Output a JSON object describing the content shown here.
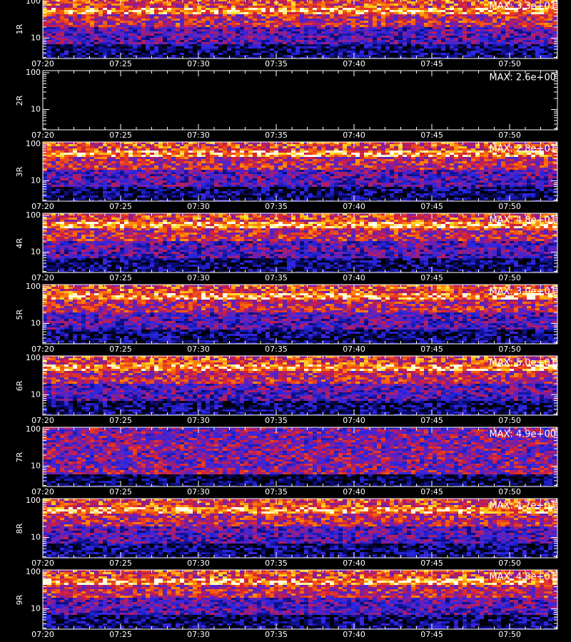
{
  "chart_data": [
    {
      "type": "spectrogram",
      "ylabel": "1R",
      "annotation": "MAX: 3.3e+01",
      "max": 33,
      "log_y": true,
      "ylim": [
        2.8,
        115
      ],
      "yticks": [
        10,
        100
      ],
      "xlim": [
        440,
        473.07
      ],
      "xticks": [
        {
          "value": 440,
          "label": "07:20"
        },
        {
          "value": 445,
          "label": "07:25"
        },
        {
          "value": 450,
          "label": "07:30"
        },
        {
          "value": 455,
          "label": "07:35"
        },
        {
          "value": 460,
          "label": "07:40"
        },
        {
          "value": 465,
          "label": "07:45"
        },
        {
          "value": 470,
          "label": "07:50"
        }
      ]
    },
    {
      "type": "spectrogram",
      "ylabel": "2R",
      "annotation": "MAX: 2.6e+00",
      "max": 2.6,
      "log_y": true,
      "ylim": [
        2.8,
        115
      ],
      "yticks": [
        10,
        100
      ],
      "xlim": [
        440,
        473.07
      ],
      "xticks": [
        {
          "value": 440,
          "label": "07:20"
        },
        {
          "value": 445,
          "label": "07:25"
        },
        {
          "value": 450,
          "label": "07:30"
        },
        {
          "value": 455,
          "label": "07:35"
        },
        {
          "value": 460,
          "label": "07:40"
        },
        {
          "value": 465,
          "label": "07:45"
        },
        {
          "value": 470,
          "label": "07:50"
        }
      ]
    },
    {
      "type": "spectrogram",
      "ylabel": "3R",
      "annotation": "MAX: 2.8e+01",
      "max": 28,
      "log_y": true,
      "ylim": [
        2.8,
        115
      ],
      "yticks": [
        10,
        100
      ],
      "xlim": [
        440,
        473.07
      ],
      "xticks": [
        {
          "value": 440,
          "label": "07:20"
        },
        {
          "value": 445,
          "label": "07:25"
        },
        {
          "value": 450,
          "label": "07:30"
        },
        {
          "value": 455,
          "label": "07:35"
        },
        {
          "value": 460,
          "label": "07:40"
        },
        {
          "value": 465,
          "label": "07:45"
        },
        {
          "value": 470,
          "label": "07:50"
        }
      ]
    },
    {
      "type": "spectrogram",
      "ylabel": "4R",
      "annotation": "MAX: 4.8e+01",
      "max": 48,
      "log_y": true,
      "ylim": [
        2.8,
        115
      ],
      "yticks": [
        10,
        100
      ],
      "xlim": [
        440,
        473.07
      ],
      "xticks": [
        {
          "value": 440,
          "label": "07:20"
        },
        {
          "value": 445,
          "label": "07:25"
        },
        {
          "value": 450,
          "label": "07:30"
        },
        {
          "value": 455,
          "label": "07:35"
        },
        {
          "value": 460,
          "label": "07:40"
        },
        {
          "value": 465,
          "label": "07:45"
        },
        {
          "value": 470,
          "label": "07:50"
        }
      ]
    },
    {
      "type": "spectrogram",
      "ylabel": "5R",
      "annotation": "MAX: 3.0e+01",
      "max": 30,
      "log_y": true,
      "ylim": [
        2.8,
        115
      ],
      "yticks": [
        10,
        100
      ],
      "xlim": [
        440,
        473.07
      ],
      "xticks": [
        {
          "value": 440,
          "label": "07:20"
        },
        {
          "value": 445,
          "label": "07:25"
        },
        {
          "value": 450,
          "label": "07:30"
        },
        {
          "value": 455,
          "label": "07:35"
        },
        {
          "value": 460,
          "label": "07:40"
        },
        {
          "value": 465,
          "label": "07:45"
        },
        {
          "value": 470,
          "label": "07:50"
        }
      ]
    },
    {
      "type": "spectrogram",
      "ylabel": "6R",
      "annotation": "MAX: 5.0e+01",
      "max": 50,
      "log_y": true,
      "ylim": [
        2.8,
        115
      ],
      "yticks": [
        10,
        100
      ],
      "xlim": [
        440,
        473.07
      ],
      "xticks": [
        {
          "value": 440,
          "label": "07:20"
        },
        {
          "value": 445,
          "label": "07:25"
        },
        {
          "value": 450,
          "label": "07:30"
        },
        {
          "value": 455,
          "label": "07:35"
        },
        {
          "value": 460,
          "label": "07:40"
        },
        {
          "value": 465,
          "label": "07:45"
        },
        {
          "value": 470,
          "label": "07:50"
        }
      ]
    },
    {
      "type": "spectrogram",
      "ylabel": "7R",
      "annotation": "MAX: 4.9e+00",
      "max": 4.9,
      "log_y": true,
      "ylim": [
        2.8,
        115
      ],
      "yticks": [
        10,
        100
      ],
      "xlim": [
        440,
        473.07
      ],
      "xticks": [
        {
          "value": 440,
          "label": "07:20"
        },
        {
          "value": 445,
          "label": "07:25"
        },
        {
          "value": 450,
          "label": "07:30"
        },
        {
          "value": 455,
          "label": "07:35"
        },
        {
          "value": 460,
          "label": "07:40"
        },
        {
          "value": 465,
          "label": "07:45"
        },
        {
          "value": 470,
          "label": "07:50"
        }
      ]
    },
    {
      "type": "spectrogram",
      "ylabel": "8R",
      "annotation": "MAX: 4.7e+01",
      "max": 47,
      "log_y": true,
      "ylim": [
        2.8,
        115
      ],
      "yticks": [
        10,
        100
      ],
      "xlim": [
        440,
        473.07
      ],
      "xticks": [
        {
          "value": 440,
          "label": "07:20"
        },
        {
          "value": 445,
          "label": "07:25"
        },
        {
          "value": 450,
          "label": "07:30"
        },
        {
          "value": 455,
          "label": "07:35"
        },
        {
          "value": 460,
          "label": "07:40"
        },
        {
          "value": 465,
          "label": "07:45"
        },
        {
          "value": 470,
          "label": "07:50"
        }
      ]
    },
    {
      "type": "spectrogram",
      "ylabel": "9R",
      "annotation": "MAX: 4.8e+01",
      "max": 48,
      "log_y": true,
      "ylim": [
        2.8,
        115
      ],
      "yticks": [
        10,
        100
      ],
      "xlim": [
        440,
        473.07
      ],
      "xticks": [
        {
          "value": 440,
          "label": "07:20"
        },
        {
          "value": 445,
          "label": "07:25"
        },
        {
          "value": 450,
          "label": "07:30"
        },
        {
          "value": 455,
          "label": "07:35"
        },
        {
          "value": 460,
          "label": "07:40"
        },
        {
          "value": 465,
          "label": "07:45"
        },
        {
          "value": 470,
          "label": "07:50"
        }
      ]
    }
  ]
}
